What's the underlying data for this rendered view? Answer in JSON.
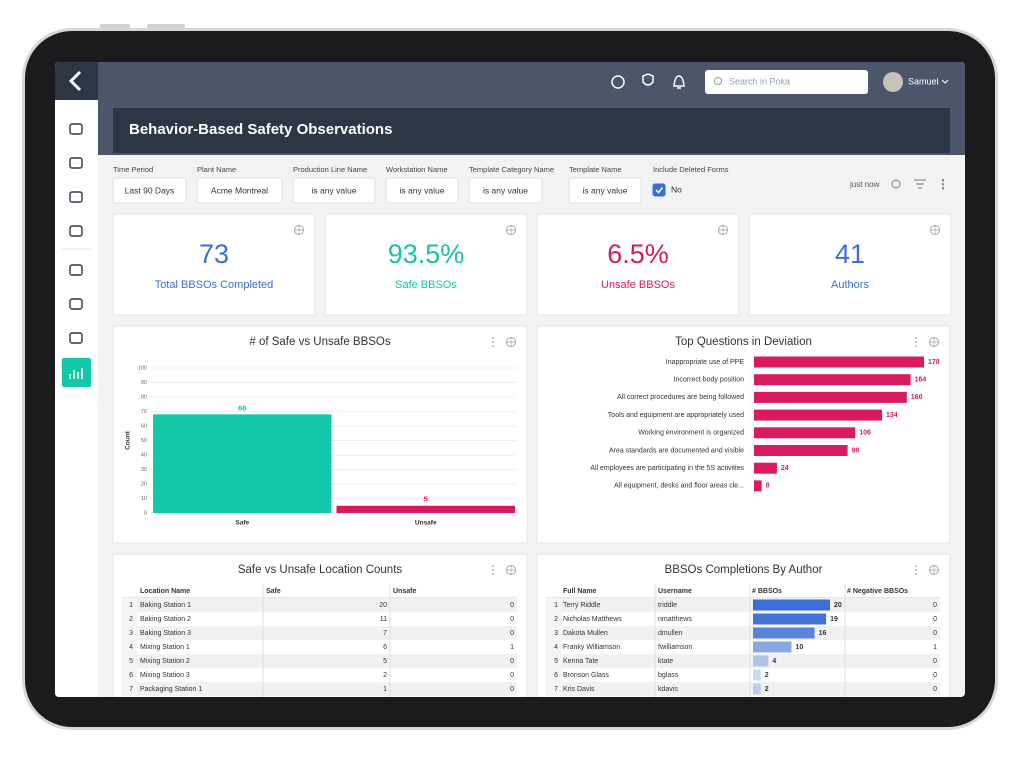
{
  "topbar": {
    "search_placeholder": "Search in Poka",
    "user": "Samuel"
  },
  "header": {
    "title": "Behavior-Based Safety Observations"
  },
  "filters": [
    {
      "label": "Time Period",
      "value": "Last 90 Days"
    },
    {
      "label": "Plant Name",
      "value": "Acme Montreal"
    },
    {
      "label": "Production Line Name",
      "value": "is any value"
    },
    {
      "label": "Workstation Name",
      "value": "is any value"
    },
    {
      "label": "Template Category Name",
      "value": "is any value"
    },
    {
      "label": "Template Name",
      "value": "is any value"
    },
    {
      "label": "Include Deleted Forms",
      "value": "No",
      "checked": true
    }
  ],
  "status": "just now",
  "kpis": [
    {
      "value": 73,
      "label": "Total BBSOs Completed",
      "color": "#3a6fd8"
    },
    {
      "value": 93.5,
      "value_label": "93.5%",
      "label": "Safe BBSOs",
      "color": "#17c3a3"
    },
    {
      "value": 6.5,
      "value_label": "6.5%",
      "label": "Unsafe BBSOs",
      "color": "#d81b60"
    },
    {
      "value": 41,
      "label": "Authors",
      "color": "#3a6fd8"
    }
  ],
  "chart_data": [
    {
      "type": "bar",
      "orientation": "vertical",
      "title": "# of Safe vs Unsafe BBSOs",
      "y_label": "Count",
      "categories": [
        "Safe",
        "Unsafe"
      ],
      "values": [
        68,
        5
      ],
      "colors": [
        "#13c8a8",
        "#d81b60"
      ],
      "ylim": [
        0,
        100
      ],
      "yticks": [
        0,
        10,
        20,
        30,
        40,
        50,
        60,
        70,
        80,
        90,
        100
      ],
      "grid": true
    },
    {
      "type": "bar",
      "orientation": "horizontal",
      "title": "Top Questions in Deviation",
      "categories": [
        "Inappropriate use of PPE",
        "Incorrect body position",
        "All correct procedures are being followed",
        "Tools and equipment are appropriately used",
        "Working environment is organized",
        "Area standards are documented and visible",
        "All employees are participating in the 5S activities",
        "All equipment, desks and floor areas cle..."
      ],
      "values": [
        178,
        164,
        160,
        134,
        106,
        98,
        24,
        8
      ],
      "color": "#d81b60"
    }
  ],
  "tables": [
    {
      "title": "Safe vs Unsafe Location Counts",
      "columns": [
        "Location Name",
        "Safe",
        "Unsafe"
      ],
      "rows": [
        [
          1,
          "Baking Station 1",
          20,
          0
        ],
        [
          2,
          "Baking Station 2",
          11,
          0
        ],
        [
          3,
          "Baking Station 3",
          7,
          0
        ],
        [
          4,
          "Mixing Station 1",
          6,
          1
        ],
        [
          5,
          "Mixing Station 2",
          5,
          0
        ],
        [
          6,
          "Mixing Station 3",
          2,
          0
        ],
        [
          7,
          "Packaging Station 1",
          1,
          0
        ]
      ]
    },
    {
      "title": "BBSOs Completions By Author",
      "columns": [
        "Full Name",
        "Username",
        "# BBSOs",
        "# Negative BBSOs"
      ],
      "rows": [
        [
          1,
          "Terry Riddle",
          "triddle",
          20,
          0
        ],
        [
          2,
          "Nicholas Matthews",
          "nmatthews",
          19,
          0
        ],
        [
          3,
          "Dakota Mullen",
          "dmullen",
          16,
          0
        ],
        [
          4,
          "Franky Williamson",
          "fwilliamson",
          10,
          1
        ],
        [
          5,
          "Kenna Tate",
          "ktate",
          4,
          0
        ],
        [
          6,
          "Bronson Glass",
          "bglass",
          2,
          0
        ],
        [
          7,
          "Kris Davis",
          "kdavis",
          2,
          0
        ]
      ],
      "bar_color": "#3b6fd6"
    }
  ]
}
